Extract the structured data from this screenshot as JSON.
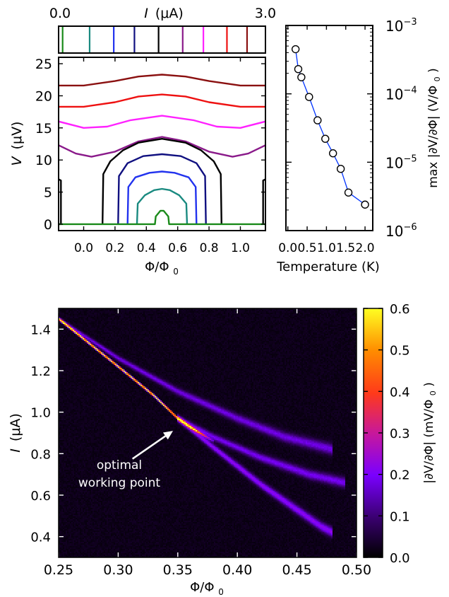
{
  "chart_data": [
    {
      "type": "line",
      "panel": "top-left",
      "top_strip": {
        "xlabel_left": "0.0",
        "xlabel_var": "I",
        "xlabel_unit": "(μA)",
        "xlabel_right": "3.0",
        "markers": [
          {
            "current": 0.07,
            "color": "#1a8a1a"
          },
          {
            "current": 0.54,
            "color": "#1a8a80"
          },
          {
            "current": 0.96,
            "color": "#2233ee"
          },
          {
            "current": 1.32,
            "color": "#101080"
          },
          {
            "current": 1.74,
            "color": "#000000"
          },
          {
            "current": 2.16,
            "color": "#8a1a8a"
          },
          {
            "current": 2.52,
            "color": "#ff22ff"
          },
          {
            "current": 2.93,
            "color": "#ee1111"
          },
          {
            "current": 3.28,
            "color": "#8a1010"
          }
        ]
      },
      "xlabel": "Φ/Φ",
      "xlabel_sub": "0",
      "ylabel_var": "V",
      "ylabel_unit": "(μV)",
      "xlim": [
        -0.16,
        1.16
      ],
      "ylim": [
        -1,
        26
      ],
      "xticks": [
        "0.0",
        "0.2",
        "0.4",
        "0.6",
        "0.8",
        "1.0"
      ],
      "xtick_values": [
        0.0,
        0.2,
        0.4,
        0.6,
        0.8,
        1.0
      ],
      "yticks": [
        "0",
        "5",
        "10",
        "15",
        "20",
        "25"
      ],
      "ytick_values": [
        0,
        5,
        10,
        15,
        20,
        25
      ],
      "series": [
        {
          "color": "#8a1010",
          "points": [
            [
              -0.16,
              21.6
            ],
            [
              0.0,
              21.6
            ],
            [
              0.2,
              22.3
            ],
            [
              0.35,
              23.0
            ],
            [
              0.5,
              23.3
            ],
            [
              0.65,
              23.0
            ],
            [
              0.8,
              22.3
            ],
            [
              1.0,
              21.6
            ],
            [
              1.16,
              21.6
            ]
          ]
        },
        {
          "color": "#ee1111",
          "points": [
            [
              -0.16,
              18.3
            ],
            [
              0.0,
              18.3
            ],
            [
              0.2,
              19.0
            ],
            [
              0.35,
              19.9
            ],
            [
              0.5,
              20.2
            ],
            [
              0.65,
              19.9
            ],
            [
              0.8,
              19.0
            ],
            [
              1.0,
              18.3
            ],
            [
              1.16,
              18.3
            ]
          ]
        },
        {
          "color": "#ff22ff",
          "points": [
            [
              -0.16,
              16.0
            ],
            [
              0.0,
              15.0
            ],
            [
              0.15,
              15.2
            ],
            [
              0.3,
              16.2
            ],
            [
              0.5,
              16.9
            ],
            [
              0.7,
              16.2
            ],
            [
              0.85,
              15.2
            ],
            [
              1.0,
              15.0
            ],
            [
              1.16,
              16.0
            ]
          ]
        },
        {
          "color": "#8a1a8a",
          "points": [
            [
              -0.16,
              12.3
            ],
            [
              -0.05,
              11.0
            ],
            [
              0.05,
              10.5
            ],
            [
              0.2,
              11.3
            ],
            [
              0.35,
              12.9
            ],
            [
              0.5,
              13.6
            ],
            [
              0.65,
              12.9
            ],
            [
              0.8,
              11.3
            ],
            [
              0.95,
              10.5
            ],
            [
              1.05,
              11.0
            ],
            [
              1.16,
              12.3
            ]
          ]
        },
        {
          "color": "#000000",
          "points": [
            [
              -0.16,
              0
            ],
            [
              -0.145,
              0
            ],
            [
              -0.145,
              6.8
            ],
            [
              -0.16,
              7.0
            ]
          ]
        },
        {
          "color": "#000000",
          "points": [
            [
              0.12,
              0
            ],
            [
              0.125,
              7.8
            ],
            [
              0.17,
              9.8
            ],
            [
              0.25,
              11.5
            ],
            [
              0.35,
              12.7
            ],
            [
              0.5,
              13.3
            ],
            [
              0.65,
              12.7
            ],
            [
              0.75,
              11.5
            ],
            [
              0.83,
              9.8
            ],
            [
              0.875,
              7.8
            ],
            [
              0.88,
              0
            ]
          ]
        },
        {
          "color": "#000000",
          "points": [
            [
              1.145,
              0
            ],
            [
              1.145,
              6.8
            ],
            [
              1.16,
              7.0
            ]
          ]
        },
        {
          "color": "#101080",
          "points": [
            [
              0.22,
              0
            ],
            [
              0.225,
              7.5
            ],
            [
              0.28,
              9.5
            ],
            [
              0.38,
              10.6
            ],
            [
              0.5,
              10.9
            ],
            [
              0.62,
              10.6
            ],
            [
              0.72,
              9.5
            ],
            [
              0.775,
              7.5
            ],
            [
              0.78,
              0
            ]
          ]
        },
        {
          "color": "#2233ee",
          "points": [
            [
              0.28,
              0
            ],
            [
              0.285,
              5.8
            ],
            [
              0.33,
              7.3
            ],
            [
              0.42,
              8.0
            ],
            [
              0.5,
              8.2
            ],
            [
              0.58,
              8.0
            ],
            [
              0.67,
              7.3
            ],
            [
              0.715,
              5.8
            ],
            [
              0.72,
              0
            ]
          ]
        },
        {
          "color": "#1a8a80",
          "points": [
            [
              0.34,
              0
            ],
            [
              0.345,
              3.2
            ],
            [
              0.39,
              4.5
            ],
            [
              0.45,
              5.3
            ],
            [
              0.5,
              5.5
            ],
            [
              0.55,
              5.3
            ],
            [
              0.61,
              4.5
            ],
            [
              0.655,
              3.2
            ],
            [
              0.66,
              0
            ]
          ]
        },
        {
          "color": "#1a8a1a",
          "points": [
            [
              -0.16,
              0
            ],
            [
              0.455,
              0
            ],
            [
              0.46,
              1.2
            ],
            [
              0.49,
              2.1
            ],
            [
              0.51,
              2.1
            ],
            [
              0.54,
              1.2
            ],
            [
              0.545,
              0
            ],
            [
              1.16,
              0
            ]
          ]
        }
      ]
    },
    {
      "type": "line",
      "panel": "top-right",
      "xlabel": "Temperature (K)",
      "ylabel": "max |∂V/∂Φ| (V/Φ",
      "ylabel_sub": "0",
      "ylabel_close": ")",
      "xlim": [
        -0.05,
        2.2
      ],
      "ylim_log10": [
        -6,
        -3
      ],
      "yscale": "log",
      "xticks": [
        "0.0",
        "0.5",
        "1.0",
        "1.5",
        "2.0"
      ],
      "xtick_values": [
        0.0,
        0.5,
        1.0,
        1.5,
        2.0
      ],
      "yticks": [
        {
          "base": "10",
          "exp": "−3",
          "value": -3
        },
        {
          "base": "10",
          "exp": "−4",
          "value": -4
        },
        {
          "base": "10",
          "exp": "−5",
          "value": -5
        },
        {
          "base": "10",
          "exp": "−6",
          "value": -6
        }
      ],
      "series": [
        {
          "color": "#0033ff",
          "marker": "open-circle",
          "points": [
            [
              0.2,
              0.00045
            ],
            [
              0.27,
              0.00023
            ],
            [
              0.35,
              0.000175
            ],
            [
              0.55,
              9e-05
            ],
            [
              0.77,
              4.1e-05
            ],
            [
              0.97,
              2.2e-05
            ],
            [
              1.17,
              1.35e-05
            ],
            [
              1.37,
              8e-06
            ],
            [
              1.57,
              3.6e-06
            ],
            [
              2.0,
              2.4e-06
            ]
          ]
        }
      ]
    },
    {
      "type": "heatmap",
      "panel": "bottom",
      "xlabel": "Φ/Φ",
      "xlabel_sub": "0",
      "ylabel_var": "I",
      "ylabel_unit": "(μA)",
      "xlim": [
        0.25,
        0.5
      ],
      "ylim": [
        0.3,
        1.5
      ],
      "xticks": [
        "0.25",
        "0.30",
        "0.35",
        "0.40",
        "0.45",
        "0.50"
      ],
      "xtick_values": [
        0.25,
        0.3,
        0.35,
        0.4,
        0.45,
        0.5
      ],
      "yticks": [
        "0.4",
        "0.6",
        "0.8",
        "1.0",
        "1.2",
        "1.4"
      ],
      "ytick_values": [
        0.4,
        0.6,
        0.8,
        1.0,
        1.2,
        1.4
      ],
      "colorbar": {
        "label": "|∂V/∂Φ| (mV/Φ",
        "label_sub": "0",
        "label_close": ")",
        "min": 0.0,
        "max": 0.6,
        "ticks": [
          "0.0",
          "0.1",
          "0.2",
          "0.3",
          "0.4",
          "0.5",
          "0.6"
        ],
        "tick_values": [
          0.0,
          0.1,
          0.2,
          0.3,
          0.4,
          0.5,
          0.6
        ],
        "colors": [
          "#000000",
          "#3a0070",
          "#7a00ff",
          "#c8189a",
          "#ff3a1a",
          "#ff8c00",
          "#ffff22"
        ]
      },
      "ridges": [
        {
          "name": "main",
          "points": [
            [
              0.25,
              1.45
            ],
            [
              0.3,
              1.22
            ],
            [
              0.33,
              1.08
            ],
            [
              0.35,
              0.97
            ],
            [
              0.36,
              0.93
            ],
            [
              0.38,
              0.86
            ]
          ],
          "peak": 0.6,
          "width": 0.004
        },
        {
          "name": "upper-branch",
          "points": [
            [
              0.25,
              1.45
            ],
            [
              0.3,
              1.26
            ],
            [
              0.35,
              1.1
            ],
            [
              0.4,
              0.97
            ],
            [
              0.44,
              0.88
            ],
            [
              0.48,
              0.82
            ]
          ],
          "peak": 0.16,
          "width": 0.009
        },
        {
          "name": "middle-branch",
          "points": [
            [
              0.35,
              0.97
            ],
            [
              0.38,
              0.88
            ],
            [
              0.42,
              0.78
            ],
            [
              0.46,
              0.7
            ],
            [
              0.49,
              0.66
            ]
          ],
          "peak": 0.17,
          "width": 0.008
        },
        {
          "name": "lower-branch",
          "points": [
            [
              0.35,
              0.97
            ],
            [
              0.38,
              0.83
            ],
            [
              0.42,
              0.65
            ],
            [
              0.45,
              0.53
            ],
            [
              0.47,
              0.45
            ],
            [
              0.48,
              0.42
            ]
          ],
          "peak": 0.2,
          "width": 0.008
        }
      ],
      "annotation": {
        "line1": "optimal",
        "line2": "working point",
        "arrow_from": [
          0.312,
          0.775
        ],
        "arrow_to": [
          0.346,
          0.91
        ]
      }
    }
  ]
}
